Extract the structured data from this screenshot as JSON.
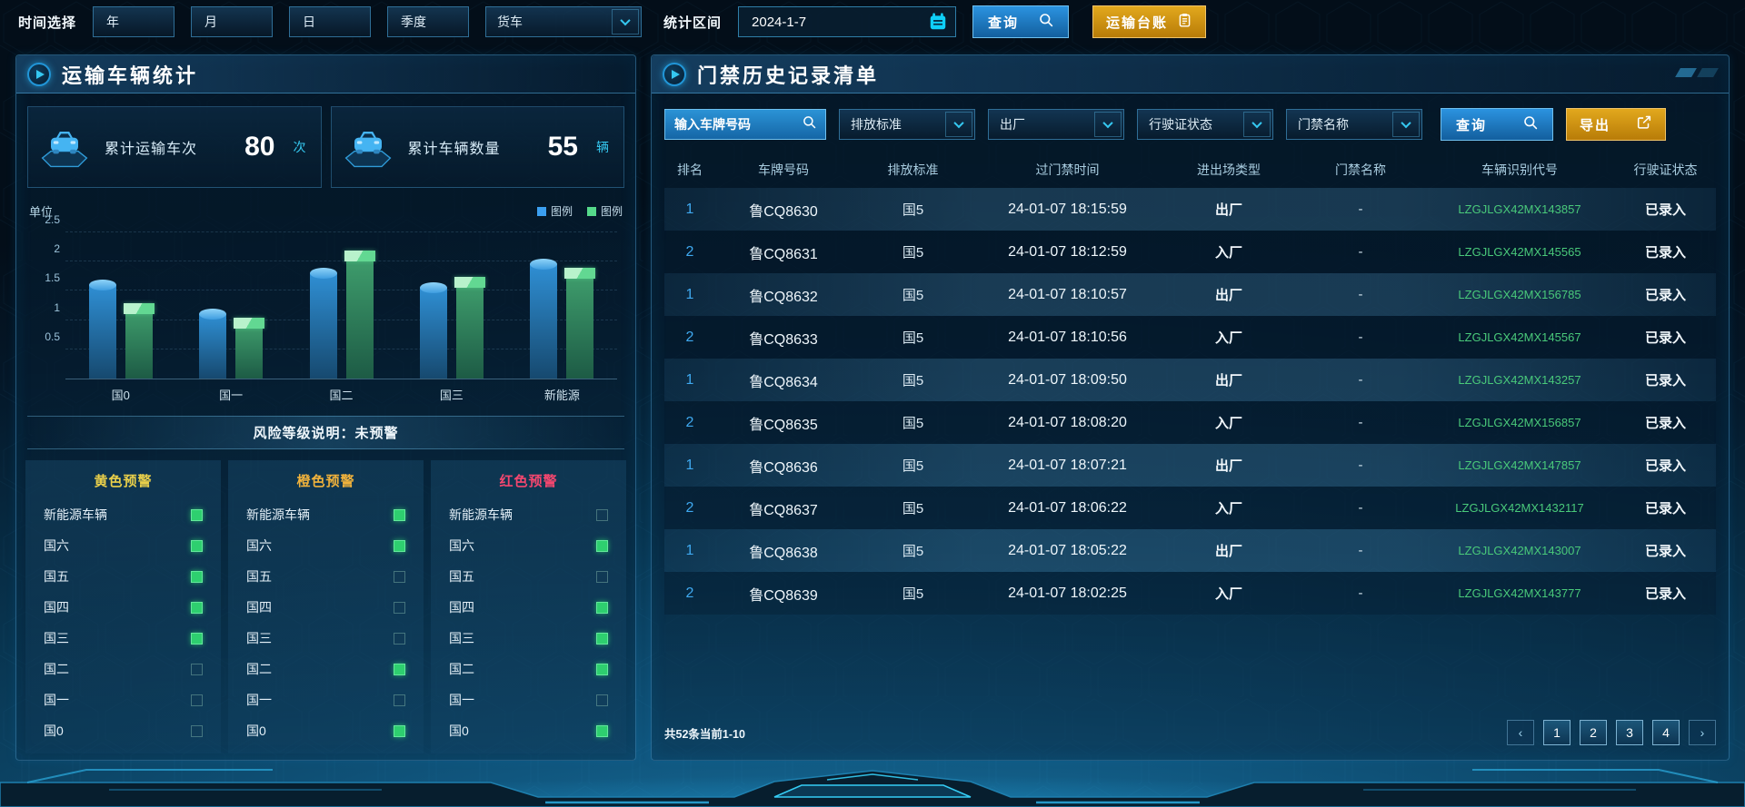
{
  "topbar": {
    "time_label": "时间选择",
    "period_buttons": [
      "年",
      "月",
      "日",
      "季度"
    ],
    "vehicle_type": "货车",
    "range_label": "统计区间",
    "date_value": "2024-1-7",
    "query_label": "查询",
    "ledger_label": "运输台账"
  },
  "left_panel": {
    "title": "运输车辆统计",
    "stats": [
      {
        "label": "累计运输车次",
        "value": "80",
        "unit": "次"
      },
      {
        "label": "累计车辆数量",
        "value": "55",
        "unit": "辆"
      }
    ],
    "risk_note": "风险等级说明：未预警",
    "warning_columns": [
      {
        "title": "黄色预警",
        "title_color": "#e9cf4a",
        "rows": [
          {
            "label": "新能源车辆",
            "checked": true
          },
          {
            "label": "国六",
            "checked": true
          },
          {
            "label": "国五",
            "checked": true
          },
          {
            "label": "国四",
            "checked": true
          },
          {
            "label": "国三",
            "checked": true
          },
          {
            "label": "国二",
            "checked": false
          },
          {
            "label": "国一",
            "checked": false
          },
          {
            "label": "国0",
            "checked": false
          }
        ]
      },
      {
        "title": "橙色预警",
        "title_color": "#f0b23c",
        "rows": [
          {
            "label": "新能源车辆",
            "checked": true
          },
          {
            "label": "国六",
            "checked": true
          },
          {
            "label": "国五",
            "checked": false
          },
          {
            "label": "国四",
            "checked": false
          },
          {
            "label": "国三",
            "checked": false
          },
          {
            "label": "国二",
            "checked": true
          },
          {
            "label": "国一",
            "checked": false
          },
          {
            "label": "国0",
            "checked": true
          }
        ]
      },
      {
        "title": "红色预警",
        "title_color": "#f4476f",
        "rows": [
          {
            "label": "新能源车辆",
            "checked": false
          },
          {
            "label": "国六",
            "checked": true
          },
          {
            "label": "国五",
            "checked": false
          },
          {
            "label": "国四",
            "checked": true
          },
          {
            "label": "国三",
            "checked": true
          },
          {
            "label": "国二",
            "checked": true
          },
          {
            "label": "国一",
            "checked": false
          },
          {
            "label": "国0",
            "checked": true
          }
        ]
      }
    ]
  },
  "chart_data": {
    "type": "bar",
    "unit_label": "单位",
    "categories": [
      "国0",
      "国一",
      "国二",
      "国三",
      "新能源"
    ],
    "series": [
      {
        "name": "图例",
        "color": "#3b9ff0",
        "values": [
          1.6,
          1.1,
          1.8,
          1.55,
          1.95
        ]
      },
      {
        "name": "图例",
        "color": "#55d98a",
        "values": [
          1.2,
          0.95,
          2.1,
          1.65,
          1.8
        ]
      }
    ],
    "ylim": [
      0,
      2.5
    ],
    "yticks": [
      0.5,
      1,
      1.5,
      2,
      2.5
    ],
    "grid": true,
    "legend_position": "top-right"
  },
  "right_panel": {
    "title": "门禁历史记录清单",
    "filters": {
      "plate_placeholder": "输入车牌号码",
      "dropdowns": [
        "排放标准",
        "出厂",
        "行驶证状态",
        "门禁名称"
      ],
      "query_label": "查询",
      "export_label": "导出"
    },
    "table": {
      "headers": [
        "排名",
        "车牌号码",
        "排放标准",
        "过门禁时间",
        "进出场类型",
        "门禁名称",
        "车辆识别代号",
        "行驶证状态"
      ],
      "rows": [
        {
          "rank": "1",
          "plate": "鲁CQ8630",
          "emission": "国5",
          "time": "24-01-07 18:15:59",
          "direction": "出厂",
          "gate": "-",
          "vin": "LZGJLGX42MX143857",
          "license_status": "已录入"
        },
        {
          "rank": "2",
          "plate": "鲁CQ8631",
          "emission": "国5",
          "time": "24-01-07 18:12:59",
          "direction": "入厂",
          "gate": "-",
          "vin": "LZGJLGX42MX145565",
          "license_status": "已录入"
        },
        {
          "rank": "1",
          "plate": "鲁CQ8632",
          "emission": "国5",
          "time": "24-01-07 18:10:57",
          "direction": "出厂",
          "gate": "-",
          "vin": "LZGJLGX42MX156785",
          "license_status": "已录入"
        },
        {
          "rank": "2",
          "plate": "鲁CQ8633",
          "emission": "国5",
          "time": "24-01-07 18:10:56",
          "direction": "入厂",
          "gate": "-",
          "vin": "LZGJLGX42MX145567",
          "license_status": "已录入"
        },
        {
          "rank": "1",
          "plate": "鲁CQ8634",
          "emission": "国5",
          "time": "24-01-07 18:09:50",
          "direction": "出厂",
          "gate": "-",
          "vin": "LZGJLGX42MX143257",
          "license_status": "已录入"
        },
        {
          "rank": "2",
          "plate": "鲁CQ8635",
          "emission": "国5",
          "time": "24-01-07 18:08:20",
          "direction": "入厂",
          "gate": "-",
          "vin": "LZGJLGX42MX156857",
          "license_status": "已录入"
        },
        {
          "rank": "1",
          "plate": "鲁CQ8636",
          "emission": "国5",
          "time": "24-01-07 18:07:21",
          "direction": "出厂",
          "gate": "-",
          "vin": "LZGJLGX42MX147857",
          "license_status": "已录入"
        },
        {
          "rank": "2",
          "plate": "鲁CQ8637",
          "emission": "国5",
          "time": "24-01-07 18:06:22",
          "direction": "入厂",
          "gate": "-",
          "vin": "LZGJLGX42MX1432117",
          "license_status": "已录入"
        },
        {
          "rank": "1",
          "plate": "鲁CQ8638",
          "emission": "国5",
          "time": "24-01-07 18:05:22",
          "direction": "出厂",
          "gate": "-",
          "vin": "LZGJLGX42MX143007",
          "license_status": "已录入"
        },
        {
          "rank": "2",
          "plate": "鲁CQ8639",
          "emission": "国5",
          "time": "24-01-07 18:02:25",
          "direction": "入厂",
          "gate": "-",
          "vin": "LZGJLGX42MX143777",
          "license_status": "已录入"
        }
      ]
    },
    "pagination": {
      "summary": "共52条当前1-10",
      "prev_label": "‹",
      "next_label": "›",
      "pages": [
        "1",
        "2",
        "3",
        "4"
      ]
    }
  },
  "colors": {
    "accent_cyan": "#2fd4ff",
    "button_blue": "#1e88e5",
    "button_gold": "#d99a16",
    "vin_green": "#49c97a",
    "rank_blue": "#3fa9f0",
    "bar_blue": "#3b9ff0",
    "bar_green": "#55d98a"
  }
}
